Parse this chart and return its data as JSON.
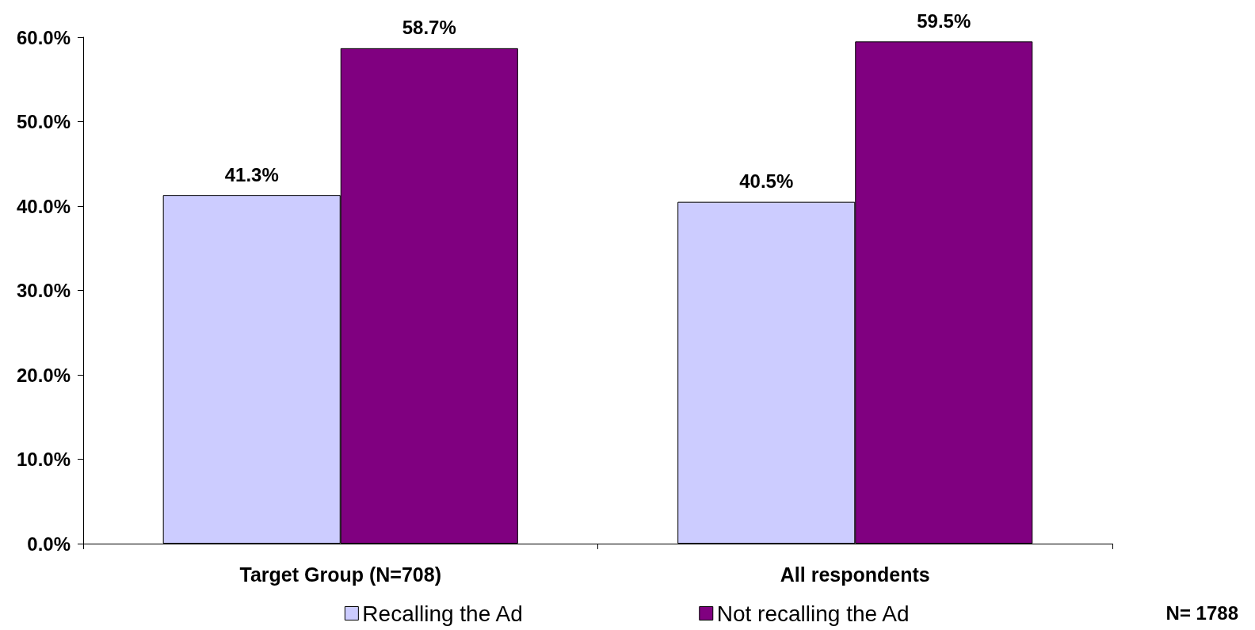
{
  "chart_data": {
    "type": "bar",
    "categories": [
      "Target Group (N=708)",
      "All respondents"
    ],
    "series": [
      {
        "name": "Recalling the Ad",
        "color": "#ccccff",
        "values": [
          41.3,
          40.5
        ],
        "value_labels": [
          "41.3%",
          "40.5%"
        ]
      },
      {
        "name": "Not recalling the Ad",
        "color": "#800080",
        "values": [
          58.7,
          59.5
        ],
        "value_labels": [
          "58.7%",
          "59.5%"
        ]
      }
    ],
    "ylim": [
      0,
      60
    ],
    "yticks": [
      {
        "value": 0,
        "label": "0.0%"
      },
      {
        "value": 10,
        "label": "10.0%"
      },
      {
        "value": 20,
        "label": "20.0%"
      },
      {
        "value": 30,
        "label": "30.0%"
      },
      {
        "value": 40,
        "label": "40.0%"
      },
      {
        "value": 50,
        "label": "50.0%"
      },
      {
        "value": 60,
        "label": "60.0%"
      }
    ],
    "grid": false,
    "legend": "bottom",
    "annotations": [
      "N= 1788"
    ]
  }
}
